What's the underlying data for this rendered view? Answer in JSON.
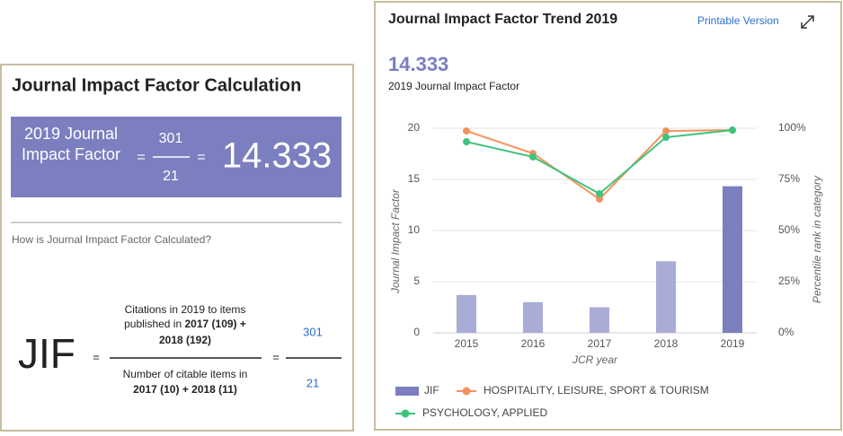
{
  "calculation": {
    "title": "Journal Impact Factor Calculation",
    "jif_label": "2019 Journal Impact Factor",
    "equals": "=",
    "citations": 301,
    "items": 21,
    "jif": 14.333,
    "question": "How is Journal Impact Factor Calculated?",
    "formula": {
      "symbol": "JIF",
      "numerator": {
        "line1": "Citations in 2019 to items",
        "line2_text": "published in",
        "line2_bold": "2017 (109) +",
        "line3": "2018 (192)"
      },
      "denominator": {
        "line1": "Number of citable items in",
        "line2": "2017 (10) + 2018 (11)"
      },
      "citations": 301,
      "items": 21
    }
  },
  "trend": {
    "title": "Journal Impact Factor Trend 2019",
    "link": "Printable Version",
    "jif": 14.333,
    "jif_label": "2019 Journal Impact Factor"
  },
  "chart_data": {
    "type": "bar-line",
    "categories": [
      "2015",
      "2016",
      "2017",
      "2018",
      "2019"
    ],
    "x_label": "JCR year",
    "y_label": "Journal Impact Factor",
    "y2_label": "Percentile rank in category",
    "ylim": [
      0,
      20
    ],
    "yticks": [
      0,
      5,
      10,
      15,
      20
    ],
    "y2lim": [
      0,
      100
    ],
    "y2ticks": [
      {
        "value": 0,
        "label": "0%"
      },
      {
        "value": 25,
        "label": "25%"
      },
      {
        "value": 50,
        "label": "50%"
      },
      {
        "value": 75,
        "label": "75%"
      },
      {
        "value": 100,
        "label": "100%"
      }
    ],
    "grid": true,
    "series": [
      {
        "name": "JIF",
        "type": "bar",
        "color": "#7b7fbf",
        "bar_colors": [
          "#a9acd6",
          "#a9acd6",
          "#a9acd6",
          "#a9acd6",
          "#7b7fbf"
        ],
        "values": [
          3.7,
          3.0,
          2.5,
          7.0,
          14.333
        ]
      },
      {
        "name": "HOSPITALITY, LEISURE, SPORT & TOURISM",
        "type": "line",
        "axis": "y2",
        "color": "#f4925f",
        "values": [
          98.7,
          87.7,
          65.4,
          98.7,
          99.1
        ]
      },
      {
        "name": "PSYCHOLOGY, APPLIED",
        "type": "line",
        "axis": "y2",
        "color": "#3cc47c",
        "values": [
          93.4,
          86,
          68,
          95.6,
          99.1
        ]
      }
    ]
  }
}
